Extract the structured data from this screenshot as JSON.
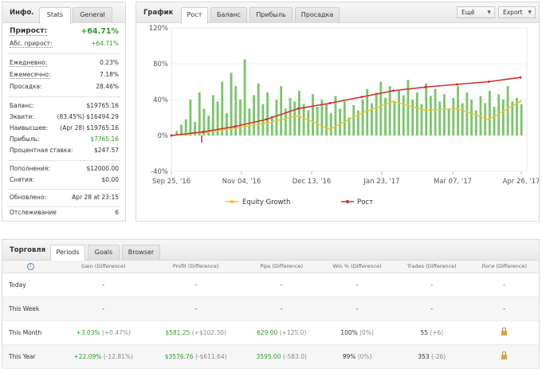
{
  "info": {
    "title": "Инфо.",
    "tabs": [
      "Stats",
      "General"
    ],
    "growth_label": "Прирост:",
    "growth_value": "+64.71%",
    "abs_label": "Абс. прирост:",
    "abs_value": "+64.71%",
    "daily_label": "Ежедневно:",
    "daily_value": "0.23%",
    "monthly_label": "Ежемесячно:",
    "monthly_value": "7.18%",
    "drawdown_label": "Просадка:",
    "drawdown_value": "28.46%",
    "balance_label": "Баланс:",
    "balance_value": "$19765.16",
    "equity_label": "Эквити:",
    "equity_value": "(83.45%) $16494.29",
    "highest_label": "Наивысшее:",
    "highest_value": "(Apr 28) $19765.16",
    "profit_label": "Прибыль:",
    "profit_value": "$7765.16",
    "interest_label": "Процентная ставка:",
    "interest_value": "$247.57",
    "deposits_label": "Пополнения:",
    "deposits_value": "$12000.00",
    "withdrawals_label": "Снятия:",
    "withdrawals_value": "$0.00",
    "updated_label": "Обновлено:",
    "updated_value": "Apr 28 at 23:15",
    "tracking_label": "Отслеживание",
    "tracking_value": "6"
  },
  "graph": {
    "title": "График",
    "tabs": [
      "Рост",
      "Баланс",
      "Прибыль",
      "Просадка"
    ],
    "more_button": "Ещё",
    "export_button": "Export"
  },
  "chart_data": {
    "type": "line",
    "y_tick_labels": [
      "120%",
      "80%",
      "40%",
      "0%",
      "-40%"
    ],
    "x_tick_labels": [
      "Sep 25, '16",
      "Nov 04, '16",
      "Dec 13, '16",
      "Jan 23, '17",
      "Mar 07, '17",
      "Apr 26, '17"
    ],
    "ylim": [
      -40,
      120
    ],
    "xlim": [
      "Sep 25, '16",
      "Apr 28, '17"
    ],
    "grid": true,
    "legend_position": "bottom",
    "series": [
      {
        "name": "Equity Growth",
        "color": "#f2c12e",
        "x": [
          "Sep 25, '16",
          "Oct 15, '16",
          "Nov 04, '16",
          "Nov 24, '16",
          "Dec 13, '16",
          "Jan 03, '17",
          "Jan 23, '17",
          "Feb 12, '17",
          "Mar 07, '17",
          "Mar 27, '17",
          "Apr 10, '17",
          "Apr 26, '17"
        ],
        "y": [
          0,
          3,
          8,
          14,
          22,
          7,
          25,
          38,
          28,
          30,
          18,
          38
        ]
      },
      {
        "name": "Рост",
        "color": "#d32f2f",
        "x": [
          "Sep 25, '16",
          "Oct 15, '16",
          "Nov 04, '16",
          "Nov 24, '16",
          "Dec 13, '16",
          "Jan 03, '17",
          "Jan 23, '17",
          "Feb 12, '17",
          "Mar 07, '17",
          "Mar 27, '17",
          "Apr 10, '17",
          "Apr 26, '17"
        ],
        "y": [
          0,
          4,
          10,
          18,
          30,
          36,
          43,
          50,
          54,
          57,
          60,
          64.71
        ]
      },
      {
        "name": "",
        "type": "bar",
        "color": "#6cc05a",
        "values": [
          5,
          12,
          18,
          40,
          15,
          48,
          30,
          22,
          45,
          38,
          60,
          25,
          70,
          55,
          40,
          85,
          30,
          45,
          58,
          35,
          48,
          22,
          40,
          55,
          30,
          42,
          38,
          50,
          35,
          28,
          46,
          32,
          40,
          36,
          25,
          44,
          30,
          38,
          20,
          34,
          28,
          40,
          52,
          36,
          48,
          60,
          42,
          55,
          38,
          50,
          45,
          62,
          40,
          48,
          35,
          58,
          44,
          52,
          38,
          46,
          30,
          42,
          55,
          36,
          48,
          40,
          28,
          44,
          36,
          50,
          32,
          46,
          40,
          55,
          38,
          42,
          35
        ]
      }
    ]
  },
  "trade": {
    "title": "Торговля",
    "tabs": [
      "Periods",
      "Goals",
      "Browser"
    ],
    "headers": [
      "Gain (Difference)",
      "Profit (Difference)",
      "Pips (Difference)",
      "Win % (Difference)",
      "Trades (Difference)",
      "Логи (Difference)"
    ],
    "rows": [
      {
        "period": "Today",
        "gain": "-",
        "gain_diff": "",
        "profit": "-",
        "profit_diff": "",
        "pips": "-",
        "pips_diff": "",
        "win": "-",
        "win_diff": "",
        "trades": "-",
        "trades_diff": "",
        "logs": "-"
      },
      {
        "period": "This Week",
        "gain": "-",
        "gain_diff": "",
        "profit": "-",
        "profit_diff": "",
        "pips": "-",
        "pips_diff": "",
        "win": "-",
        "win_diff": "",
        "trades": "-",
        "trades_diff": "",
        "logs": "-"
      },
      {
        "period": "This Month",
        "gain": "+3.03%",
        "gain_diff": "(+0.47%)",
        "profit": "$581.25",
        "profit_diff": "(+$102.30)",
        "pips": "629.00",
        "pips_diff": "(+125.0)",
        "win": "100%",
        "win_diff": "(0%)",
        "trades": "55",
        "trades_diff": "(+6)",
        "logs": "lock"
      },
      {
        "period": "This Year",
        "gain": "+22.09%",
        "gain_diff": "(-12.81%)",
        "profit": "$3576.76",
        "profit_diff": "(-$611.64)",
        "pips": "3595.00",
        "pips_diff": "(-583.0)",
        "win": "99%",
        "win_diff": "(0%)",
        "trades": "353",
        "trades_diff": "(-26)",
        "logs": "lock"
      }
    ]
  }
}
